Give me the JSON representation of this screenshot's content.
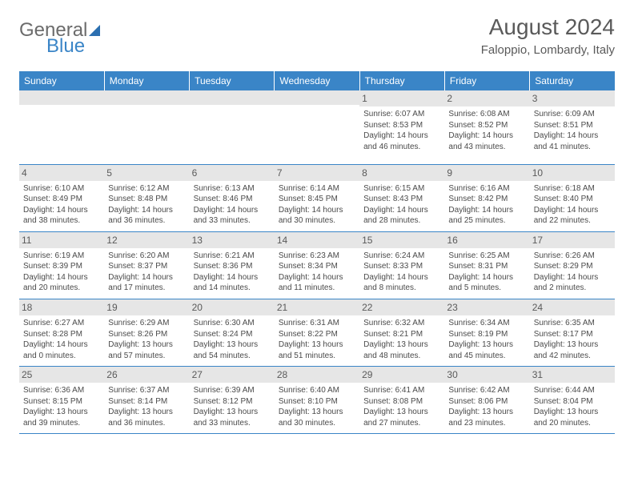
{
  "brand": {
    "part1": "General",
    "part2": "Blue"
  },
  "title": "August 2024",
  "location": "Faloppio, Lombardy, Italy",
  "colors": {
    "header_bg": "#3a85c7",
    "header_text": "#ffffff",
    "daynum_bg": "#e6e6e6",
    "text": "#4a4a4a",
    "title_text": "#5a5a5a",
    "logo_gray": "#6b6b6b",
    "logo_blue": "#3a85c7",
    "border": "#3a85c7"
  },
  "weekdays": [
    "Sunday",
    "Monday",
    "Tuesday",
    "Wednesday",
    "Thursday",
    "Friday",
    "Saturday"
  ],
  "weeks": [
    [
      null,
      null,
      null,
      null,
      {
        "n": "1",
        "sr": "Sunrise: 6:07 AM",
        "ss": "Sunset: 8:53 PM",
        "dl": "Daylight: 14 hours and 46 minutes."
      },
      {
        "n": "2",
        "sr": "Sunrise: 6:08 AM",
        "ss": "Sunset: 8:52 PM",
        "dl": "Daylight: 14 hours and 43 minutes."
      },
      {
        "n": "3",
        "sr": "Sunrise: 6:09 AM",
        "ss": "Sunset: 8:51 PM",
        "dl": "Daylight: 14 hours and 41 minutes."
      }
    ],
    [
      {
        "n": "4",
        "sr": "Sunrise: 6:10 AM",
        "ss": "Sunset: 8:49 PM",
        "dl": "Daylight: 14 hours and 38 minutes."
      },
      {
        "n": "5",
        "sr": "Sunrise: 6:12 AM",
        "ss": "Sunset: 8:48 PM",
        "dl": "Daylight: 14 hours and 36 minutes."
      },
      {
        "n": "6",
        "sr": "Sunrise: 6:13 AM",
        "ss": "Sunset: 8:46 PM",
        "dl": "Daylight: 14 hours and 33 minutes."
      },
      {
        "n": "7",
        "sr": "Sunrise: 6:14 AM",
        "ss": "Sunset: 8:45 PM",
        "dl": "Daylight: 14 hours and 30 minutes."
      },
      {
        "n": "8",
        "sr": "Sunrise: 6:15 AM",
        "ss": "Sunset: 8:43 PM",
        "dl": "Daylight: 14 hours and 28 minutes."
      },
      {
        "n": "9",
        "sr": "Sunrise: 6:16 AM",
        "ss": "Sunset: 8:42 PM",
        "dl": "Daylight: 14 hours and 25 minutes."
      },
      {
        "n": "10",
        "sr": "Sunrise: 6:18 AM",
        "ss": "Sunset: 8:40 PM",
        "dl": "Daylight: 14 hours and 22 minutes."
      }
    ],
    [
      {
        "n": "11",
        "sr": "Sunrise: 6:19 AM",
        "ss": "Sunset: 8:39 PM",
        "dl": "Daylight: 14 hours and 20 minutes."
      },
      {
        "n": "12",
        "sr": "Sunrise: 6:20 AM",
        "ss": "Sunset: 8:37 PM",
        "dl": "Daylight: 14 hours and 17 minutes."
      },
      {
        "n": "13",
        "sr": "Sunrise: 6:21 AM",
        "ss": "Sunset: 8:36 PM",
        "dl": "Daylight: 14 hours and 14 minutes."
      },
      {
        "n": "14",
        "sr": "Sunrise: 6:23 AM",
        "ss": "Sunset: 8:34 PM",
        "dl": "Daylight: 14 hours and 11 minutes."
      },
      {
        "n": "15",
        "sr": "Sunrise: 6:24 AM",
        "ss": "Sunset: 8:33 PM",
        "dl": "Daylight: 14 hours and 8 minutes."
      },
      {
        "n": "16",
        "sr": "Sunrise: 6:25 AM",
        "ss": "Sunset: 8:31 PM",
        "dl": "Daylight: 14 hours and 5 minutes."
      },
      {
        "n": "17",
        "sr": "Sunrise: 6:26 AM",
        "ss": "Sunset: 8:29 PM",
        "dl": "Daylight: 14 hours and 2 minutes."
      }
    ],
    [
      {
        "n": "18",
        "sr": "Sunrise: 6:27 AM",
        "ss": "Sunset: 8:28 PM",
        "dl": "Daylight: 14 hours and 0 minutes."
      },
      {
        "n": "19",
        "sr": "Sunrise: 6:29 AM",
        "ss": "Sunset: 8:26 PM",
        "dl": "Daylight: 13 hours and 57 minutes."
      },
      {
        "n": "20",
        "sr": "Sunrise: 6:30 AM",
        "ss": "Sunset: 8:24 PM",
        "dl": "Daylight: 13 hours and 54 minutes."
      },
      {
        "n": "21",
        "sr": "Sunrise: 6:31 AM",
        "ss": "Sunset: 8:22 PM",
        "dl": "Daylight: 13 hours and 51 minutes."
      },
      {
        "n": "22",
        "sr": "Sunrise: 6:32 AM",
        "ss": "Sunset: 8:21 PM",
        "dl": "Daylight: 13 hours and 48 minutes."
      },
      {
        "n": "23",
        "sr": "Sunrise: 6:34 AM",
        "ss": "Sunset: 8:19 PM",
        "dl": "Daylight: 13 hours and 45 minutes."
      },
      {
        "n": "24",
        "sr": "Sunrise: 6:35 AM",
        "ss": "Sunset: 8:17 PM",
        "dl": "Daylight: 13 hours and 42 minutes."
      }
    ],
    [
      {
        "n": "25",
        "sr": "Sunrise: 6:36 AM",
        "ss": "Sunset: 8:15 PM",
        "dl": "Daylight: 13 hours and 39 minutes."
      },
      {
        "n": "26",
        "sr": "Sunrise: 6:37 AM",
        "ss": "Sunset: 8:14 PM",
        "dl": "Daylight: 13 hours and 36 minutes."
      },
      {
        "n": "27",
        "sr": "Sunrise: 6:39 AM",
        "ss": "Sunset: 8:12 PM",
        "dl": "Daylight: 13 hours and 33 minutes."
      },
      {
        "n": "28",
        "sr": "Sunrise: 6:40 AM",
        "ss": "Sunset: 8:10 PM",
        "dl": "Daylight: 13 hours and 30 minutes."
      },
      {
        "n": "29",
        "sr": "Sunrise: 6:41 AM",
        "ss": "Sunset: 8:08 PM",
        "dl": "Daylight: 13 hours and 27 minutes."
      },
      {
        "n": "30",
        "sr": "Sunrise: 6:42 AM",
        "ss": "Sunset: 8:06 PM",
        "dl": "Daylight: 13 hours and 23 minutes."
      },
      {
        "n": "31",
        "sr": "Sunrise: 6:44 AM",
        "ss": "Sunset: 8:04 PM",
        "dl": "Daylight: 13 hours and 20 minutes."
      }
    ]
  ]
}
